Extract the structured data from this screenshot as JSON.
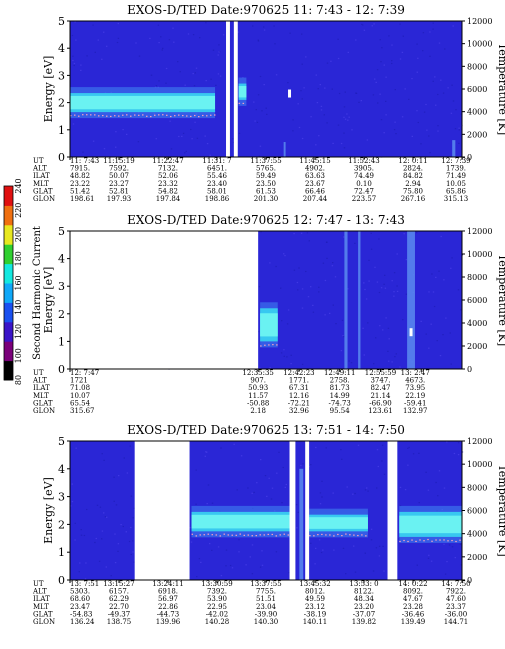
{
  "figure": {
    "colorbar": {
      "label": "Second Harmonic Current",
      "ticks": [
        "80",
        "100",
        "120",
        "140",
        "160",
        "180",
        "200",
        "220",
        "240"
      ],
      "colors": [
        "#000000",
        "#7a007a",
        "#3a14c8",
        "#1a50f0",
        "#10a8f8",
        "#14e8e0",
        "#30d030",
        "#e8e820",
        "#f07010",
        "#e01010"
      ]
    },
    "palette": {
      "background": "#2a26d6",
      "band": "#38c8f0",
      "core": "#6af2f2",
      "gap": "#ffffff",
      "stripe": "#5a8cf0"
    }
  },
  "chart_data": [
    {
      "type": "heatmap",
      "title": "EXOS-D/TED   Date:970625  11: 7:43 - 12: 7:39",
      "ylabel": "Energy [eV]",
      "ylabel_right": "Temperature [K]",
      "ylim": [
        0,
        5
      ],
      "yticks": [
        "0",
        "1",
        "2",
        "3",
        "4",
        "5"
      ],
      "ylim_right": [
        0,
        12000
      ],
      "yticks_right": [
        "0",
        "2000",
        "4000",
        "6000",
        "8000",
        "10000",
        "12000"
      ],
      "band_regions": [
        {
          "x_from": 0.0,
          "x_to": 0.37,
          "center_eV": 2.0,
          "half_width_eV": 0.35
        },
        {
          "x_from": 0.43,
          "x_to": 0.45,
          "center_eV": 2.4,
          "half_width_eV": 0.3
        }
      ],
      "gaps": [
        [
          0.398,
          0.408
        ],
        [
          0.418,
          0.428
        ]
      ],
      "stripes": [
        [
          0.545,
          0.0,
          0.55,
          0.005
        ],
        [
          0.975,
          0.0,
          0.62,
          0.008
        ]
      ],
      "temperature_markers": [
        [
          0.56,
          5600
        ]
      ],
      "time_rows": [
        {
          "label": "UT",
          "values": [
            "11: 7:43",
            "11:15:19",
            "11:22:47",
            "11:31: 7",
            "11:37:55",
            "11:45:15",
            "11:52:43",
            "12: 0:11",
            "12: 7:39"
          ]
        },
        {
          "label": "ALT",
          "values": [
            "7915.",
            "7592.",
            "7132.",
            "6451.",
            "5765.",
            "4902.",
            "3905.",
            "2824.",
            "1739."
          ]
        },
        {
          "label": "ILAT",
          "values": [
            "48.82",
            "50.07",
            "52.06",
            "55.46",
            "59.49",
            "63.63",
            "74.49",
            "84.82",
            "71.49"
          ]
        },
        {
          "label": "MLT",
          "values": [
            "23.22",
            "23.27",
            "23.32",
            "23.40",
            "23.50",
            "23.67",
            "0.10",
            "2.94",
            "10.05"
          ]
        },
        {
          "label": "GLAT",
          "values": [
            "51.42",
            "52.81",
            "54.82",
            "58.01",
            "61.53",
            "66.46",
            "72.47",
            "75.80",
            "65.86"
          ]
        },
        {
          "label": "GLON",
          "values": [
            "198.61",
            "197.93",
            "197.84",
            "198.86",
            "201.30",
            "207.44",
            "223.57",
            "267.16",
            "315.13"
          ]
        }
      ]
    },
    {
      "type": "heatmap",
      "title": "EXOS-D/TED   Date:970625  12: 7:47 - 13: 7:43",
      "ylabel": "Energy [eV]",
      "ylabel_right": "Temperature [K]",
      "ylim": [
        0,
        5
      ],
      "yticks": [
        "0",
        "1",
        "2",
        "3",
        "4",
        "5"
      ],
      "ylim_right": [
        0,
        12000
      ],
      "yticks_right": [
        "0",
        "2000",
        "4000",
        "6000",
        "8000",
        "10000",
        "12000"
      ],
      "blank_regions": [
        [
          0.0,
          0.48
        ]
      ],
      "band_regions": [
        {
          "x_from": 0.485,
          "x_to": 0.53,
          "center_eV": 1.6,
          "half_width_eV": 0.6
        }
      ],
      "gaps": [],
      "stripes": [
        [
          0.86,
          0.0,
          5.0,
          0.02
        ],
        [
          0.7,
          0.0,
          5.0,
          0.008
        ],
        [
          0.735,
          0.0,
          5.0,
          0.006
        ]
      ],
      "temperature_markers": [
        [
          0.87,
          3200
        ]
      ],
      "time_rows": [
        {
          "label": "UT",
          "values": [
            "12: 7:47",
            "12:35:35",
            "12:42:23",
            "12:49:11",
            "12:55:59",
            "13: 2:47"
          ]
        },
        {
          "label": "ALT",
          "values": [
            "1721",
            "907.",
            "1771.",
            "2758.",
            "3747.",
            "4673."
          ]
        },
        {
          "label": "ILAT",
          "values": [
            "71.08",
            "50.93",
            "67.31",
            "81.73",
            "82.47",
            "73.95"
          ]
        },
        {
          "label": "MLT",
          "values": [
            "10.07",
            "11.57",
            "12.16",
            "14.99",
            "21.14",
            "22.19"
          ]
        },
        {
          "label": "GLAT",
          "values": [
            "65.54",
            "-50.88",
            "-72.21",
            "-74.73",
            "-66.90",
            "-59.41"
          ]
        },
        {
          "label": "GLON",
          "values": [
            "315.67",
            "2.18",
            "32.96",
            "95.54",
            "123.61",
            "132.97"
          ]
        }
      ]
    },
    {
      "type": "heatmap",
      "title": "EXOS-D/TED   Date:970625  13: 7:51 - 14: 7:50",
      "ylabel": "Energy [eV]",
      "ylabel_right": "Temperature [K]",
      "ylim": [
        0,
        5
      ],
      "yticks": [
        "0",
        "1",
        "2",
        "3",
        "4",
        "5"
      ],
      "ylim_right": [
        0,
        12000
      ],
      "yticks_right": [
        "0",
        "2000",
        "4000",
        "6000",
        "8000",
        "10000",
        "12000"
      ],
      "band_regions": [
        {
          "x_from": 0.31,
          "x_to": 0.56,
          "center_eV": 2.1,
          "half_width_eV": 0.35
        },
        {
          "x_from": 0.61,
          "x_to": 0.76,
          "center_eV": 2.05,
          "half_width_eV": 0.3
        },
        {
          "x_from": 0.84,
          "x_to": 1.0,
          "center_eV": 2.0,
          "half_width_eV": 0.45
        }
      ],
      "blank_regions": [
        [
          0.165,
          0.305
        ]
      ],
      "gaps": [
        [
          0.56,
          0.575
        ],
        [
          0.6,
          0.61
        ],
        [
          0.81,
          0.835
        ]
      ],
      "stripes": [
        [
          0.585,
          0.0,
          4.0,
          0.01
        ],
        [
          0.2,
          2.5,
          4.8,
          0.004
        ]
      ],
      "temperature_markers": [],
      "time_rows": [
        {
          "label": "UT",
          "values": [
            "13: 7:51",
            "13:15:27",
            "13:24:11",
            "13:30:59",
            "13:37:55",
            "13:45:32",
            "13:53: 0",
            "14: 0:22",
            "14: 7:50"
          ]
        },
        {
          "label": "ALT",
          "values": [
            "5303.",
            "6157.",
            "6918.",
            "7392.",
            "7755.",
            "8012.",
            "8122.",
            "8092.",
            "7922."
          ]
        },
        {
          "label": "ILAT",
          "values": [
            "68.60",
            "62.29",
            "56.97",
            "53.90",
            "51.51",
            "49.59",
            "48.34",
            "47.67",
            "47.60"
          ]
        },
        {
          "label": "MLT",
          "values": [
            "23.47",
            "22.70",
            "22.86",
            "22.95",
            "23.04",
            "23.12",
            "23.20",
            "23.28",
            "23.37"
          ]
        },
        {
          "label": "GLAT",
          "values": [
            "-54.83",
            "-49.37",
            "-44.73",
            "-42.02",
            "-39.90",
            "-38.19",
            "-37.07",
            "-36.46",
            "-36.00"
          ]
        },
        {
          "label": "GLON",
          "values": [
            "136.24",
            "138.75",
            "139.96",
            "140.28",
            "140.30",
            "140.11",
            "139.82",
            "139.49",
            "144.71"
          ]
        }
      ]
    }
  ]
}
